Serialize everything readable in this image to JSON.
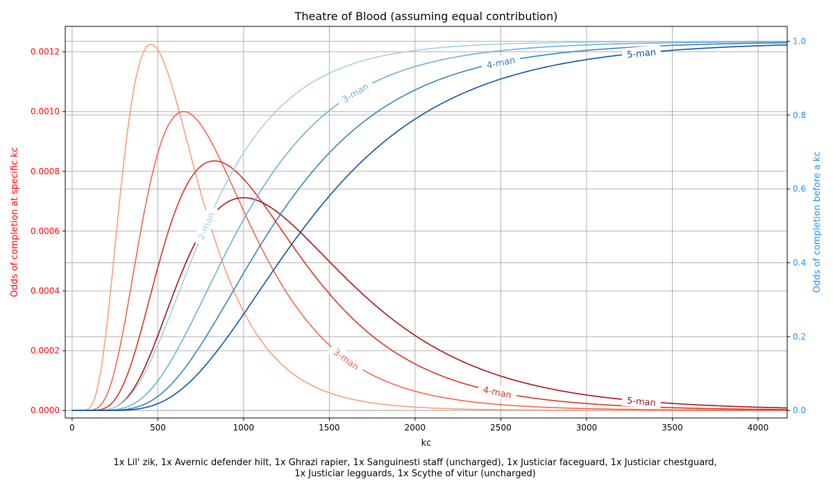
{
  "chart_data": {
    "type": "line",
    "title": "Theatre of Blood (assuming equal contribution)",
    "xlabel": "kc",
    "ylabel_left": "Odds of completion at specific kc",
    "ylabel_right": "Odds of completion before a kc",
    "xlim": [
      -40,
      4170
    ],
    "ylim_left": [
      -2.5e-05,
      0.001285
    ],
    "ylim_right": [
      -0.02025,
      1.04025
    ],
    "grid": true,
    "x_ticks": [
      0,
      500,
      1000,
      1500,
      2000,
      2500,
      3000,
      3500,
      4000
    ],
    "y_left_ticks": [
      "0.0000",
      "0.0002",
      "0.0004",
      "0.0006",
      "0.0008",
      "0.0010",
      "0.0012"
    ],
    "y_right_ticks": [
      "0.0",
      "0.2",
      "0.4",
      "0.6",
      "0.8",
      "1.0"
    ],
    "colors": {
      "left_axis": "#ff0000",
      "right_axis": "#1e90ff",
      "pdf": [
        "#fb9a7a",
        "#ef6548",
        "#d7301f",
        "#a50f15"
      ],
      "cdf": [
        "#a6cee3",
        "#6baed6",
        "#3182bd",
        "#08519c"
      ]
    },
    "series": [
      {
        "name": "2-man",
        "axis": "left",
        "peak_x": 460,
        "peak_y": 0.001225
      },
      {
        "name": "3-man",
        "axis": "left",
        "peak_x": 650,
        "peak_y": 0.001
      },
      {
        "name": "4-man",
        "axis": "left",
        "peak_x": 830,
        "peak_y": 0.000835
      },
      {
        "name": "5-man",
        "axis": "left",
        "peak_x": 1000,
        "peak_y": 0.000712
      },
      {
        "name": "2-man",
        "axis": "right",
        "median_x": 780
      },
      {
        "name": "3-man",
        "axis": "right",
        "median_x": 980
      },
      {
        "name": "4-man",
        "axis": "right",
        "median_x": 1170
      },
      {
        "name": "5-man",
        "axis": "right",
        "median_x": 1360
      }
    ],
    "inline_labels": [
      {
        "text": "2-man",
        "series": 4,
        "x": 780
      },
      {
        "text": "3-man",
        "series": 1,
        "x": 1600
      },
      {
        "text": "4-man",
        "series": 2,
        "x": 2480
      },
      {
        "text": "5-man",
        "series": 3,
        "x": 3320
      },
      {
        "text": "3-man",
        "series": 5,
        "x": 1650
      },
      {
        "text": "4-man",
        "series": 6,
        "x": 2500
      },
      {
        "text": "5-man",
        "series": 7,
        "x": 3320
      }
    ]
  },
  "footer": {
    "line1": "1x Lil' zik, 1x Avernic defender hilt, 1x Ghrazi rapier, 1x Sanguinesti staff (uncharged), 1x Justiciar faceguard, 1x Justiciar chestguard,",
    "line2": "1x Justiciar legguards, 1x Scythe of vitur (uncharged)"
  }
}
